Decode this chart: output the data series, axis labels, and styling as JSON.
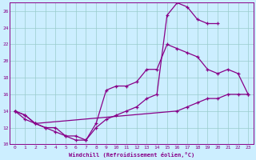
{
  "xlabel": "Windchill (Refroidissement éolien,°C)",
  "bg_color": "#cceeff",
  "line_color": "#880088",
  "grid_color": "#99cccc",
  "xlim": [
    -0.5,
    23.5
  ],
  "ylim": [
    10,
    27
  ],
  "xticks": [
    0,
    1,
    2,
    3,
    4,
    5,
    6,
    7,
    8,
    9,
    10,
    11,
    12,
    13,
    14,
    15,
    16,
    17,
    18,
    19,
    20,
    21,
    22,
    23
  ],
  "yticks": [
    10,
    12,
    14,
    16,
    18,
    20,
    22,
    24,
    26
  ],
  "line1_x": [
    0,
    1,
    2,
    3,
    4,
    5,
    6,
    7,
    8,
    9,
    10,
    11,
    12,
    13,
    14,
    15,
    16,
    17,
    18,
    19,
    20,
    21,
    22,
    23
  ],
  "line1_y": [
    14.0,
    13.5,
    12.5,
    12.0,
    11.5,
    11.0,
    10.5,
    10.5,
    12.5,
    16.5,
    17.0,
    17.0,
    17.5,
    19.0,
    19.0,
    22.0,
    21.5,
    21.0,
    20.5,
    19.0,
    18.5,
    19.0,
    18.5,
    16.0
  ],
  "line2_x": [
    0,
    1,
    2,
    3,
    4,
    5,
    6,
    7,
    8,
    9,
    10,
    11,
    12,
    13,
    14,
    15,
    16,
    17,
    18,
    19,
    20,
    21,
    22,
    23
  ],
  "line2_y": [
    14.0,
    13.0,
    12.5,
    12.0,
    12.0,
    11.0,
    11.0,
    10.5,
    12.0,
    13.0,
    13.5,
    14.0,
    14.5,
    15.5,
    16.0,
    25.5,
    27.0,
    26.5,
    25.0,
    24.5,
    24.5,
    null,
    null,
    null
  ],
  "line3_x": [
    0,
    1,
    2,
    16,
    17,
    18,
    19,
    20,
    21,
    22,
    23
  ],
  "line3_y": [
    14.0,
    13.5,
    12.5,
    14.0,
    14.5,
    15.0,
    15.5,
    15.5,
    16.0,
    16.0,
    16.0
  ]
}
